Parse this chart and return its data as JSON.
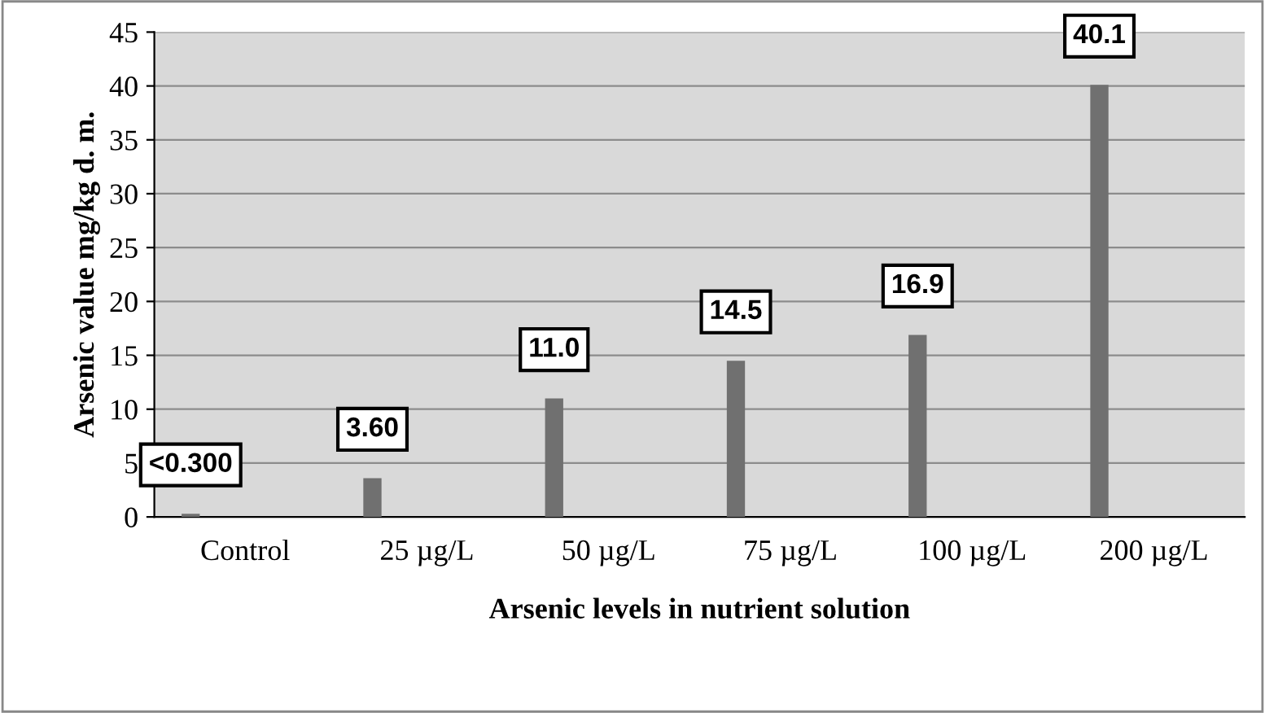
{
  "chart_data": {
    "type": "bar",
    "xlabel": "Arsenic levels in nutrient solution",
    "ylabel": "Arsenic value mg/kg d. m.",
    "categories": [
      "Control",
      "25 µg/L",
      "50 µg/L",
      "75 µg/L",
      "100 µg/L",
      "200 µg/L"
    ],
    "values": [
      0.3,
      3.6,
      11.0,
      14.5,
      16.9,
      40.1
    ],
    "value_labels": [
      "<0.300",
      "3.60",
      "11.0",
      "14.5",
      "16.9",
      "40.1"
    ],
    "color": "#707070",
    "ylim": [
      0,
      45
    ],
    "yticks": [
      0,
      5,
      10,
      15,
      20,
      25,
      30,
      35,
      40,
      45
    ],
    "grid": "y"
  }
}
